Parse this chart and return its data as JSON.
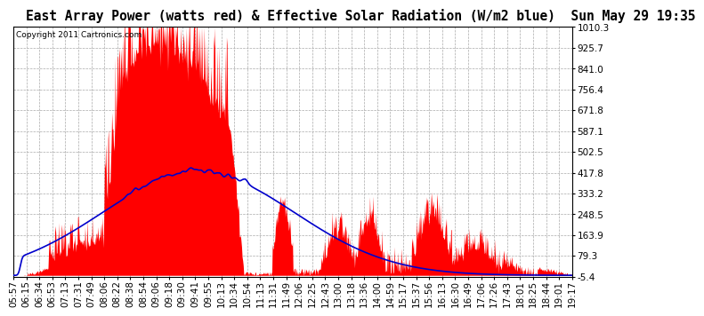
{
  "title": "East Array Power (watts red) & Effective Solar Radiation (W/m2 blue)  Sun May 29 19:35",
  "copyright": "Copyright 2011 Cartronics.com",
  "ylim_min": -5.4,
  "ylim_max": 1010.3,
  "yticks": [
    -5.4,
    79.3,
    163.9,
    248.5,
    333.2,
    417.8,
    502.5,
    587.1,
    671.8,
    756.4,
    841.0,
    925.7,
    1010.3
  ],
  "xlabel_times": [
    "05:57",
    "06:15",
    "06:34",
    "06:53",
    "07:13",
    "07:31",
    "07:49",
    "08:06",
    "08:22",
    "08:38",
    "08:54",
    "09:06",
    "09:18",
    "09:30",
    "09:41",
    "09:55",
    "10:13",
    "10:34",
    "10:54",
    "11:13",
    "11:31",
    "11:49",
    "12:06",
    "12:25",
    "12:43",
    "13:00",
    "13:18",
    "13:36",
    "14:00",
    "14:59",
    "15:17",
    "15:37",
    "15:56",
    "16:13",
    "16:30",
    "16:49",
    "17:06",
    "17:26",
    "17:43",
    "18:01",
    "18:25",
    "18:44",
    "19:01",
    "19:17"
  ],
  "background_color": "#ffffff",
  "red_color": "#ff0000",
  "blue_color": "#0000cc",
  "grid_color": "#aaaaaa",
  "title_fontsize": 10.5,
  "copyright_fontsize": 6.5,
  "tick_fontsize": 7.5
}
